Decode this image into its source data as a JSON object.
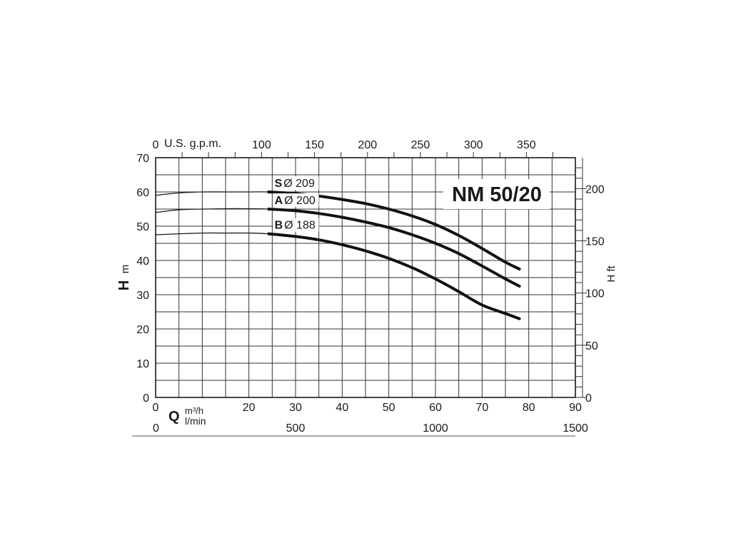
{
  "chart_data": {
    "type": "line",
    "title": "NM 50/20",
    "ylabel_bold": "H",
    "ylabel_unit": "m",
    "y2label": "H ft",
    "xlabel_bold": "Q",
    "xlabel_unit_1": "m³/h",
    "xlabel_unit_2": "l/min",
    "top_axis_label": "U.S. g.p.m.",
    "x_range": [
      0,
      90
    ],
    "y_range": [
      0,
      70
    ],
    "grid": true,
    "x_ticks": [
      "0",
      "20",
      "30",
      "40",
      "50",
      "60",
      "70",
      "80",
      "90"
    ],
    "x_tick_values": [
      0,
      20,
      30,
      40,
      50,
      60,
      70,
      80,
      90
    ],
    "y_ticks": [
      "0",
      "10",
      "20",
      "30",
      "40",
      "50",
      "60",
      "70"
    ],
    "y_tick_values": [
      0,
      10,
      20,
      30,
      40,
      50,
      60,
      70
    ],
    "top_ticks": [
      "0",
      "100",
      "150",
      "200",
      "250",
      "300",
      "350"
    ],
    "top_tick_values": [
      0,
      100,
      150,
      200,
      250,
      300,
      350
    ],
    "right_ticks": [
      "0",
      "50",
      "100",
      "150",
      "200"
    ],
    "right_tick_values": [
      0,
      50,
      100,
      150,
      200
    ],
    "lmin_ticks": [
      "0",
      "500",
      "1000",
      "1500"
    ],
    "lmin_tick_values": [
      0,
      500,
      1000,
      1500
    ],
    "series": [
      {
        "name": "S",
        "diameter": "Ø 209",
        "x": [
          0,
          5,
          10,
          15,
          20,
          24,
          30,
          35,
          40,
          45,
          50,
          55,
          60,
          65,
          70,
          75,
          78
        ],
        "y": [
          59,
          59.7,
          60,
          60,
          60,
          60,
          59.5,
          58.8,
          57.8,
          56.6,
          55,
          53,
          50.5,
          47.3,
          43.5,
          39.5,
          37.5
        ]
      },
      {
        "name": "A",
        "diameter": "Ø 200",
        "x": [
          0,
          5,
          10,
          15,
          20,
          24,
          30,
          35,
          40,
          45,
          50,
          55,
          60,
          65,
          70,
          75,
          78
        ],
        "y": [
          54,
          54.8,
          55,
          55.1,
          55.1,
          55,
          54.5,
          53.7,
          52.6,
          51.2,
          49.6,
          47.5,
          45,
          42,
          38.4,
          34.6,
          32.5
        ]
      },
      {
        "name": "B",
        "diameter": "Ø 188",
        "x": [
          0,
          5,
          10,
          15,
          20,
          24,
          30,
          35,
          40,
          45,
          50,
          55,
          60,
          65,
          70,
          75,
          78
        ],
        "y": [
          47.5,
          47.8,
          48,
          48,
          48,
          47.8,
          47,
          46,
          44.6,
          42.8,
          40.6,
          37.9,
          34.6,
          30.9,
          27,
          24.5,
          23
        ]
      }
    ]
  }
}
